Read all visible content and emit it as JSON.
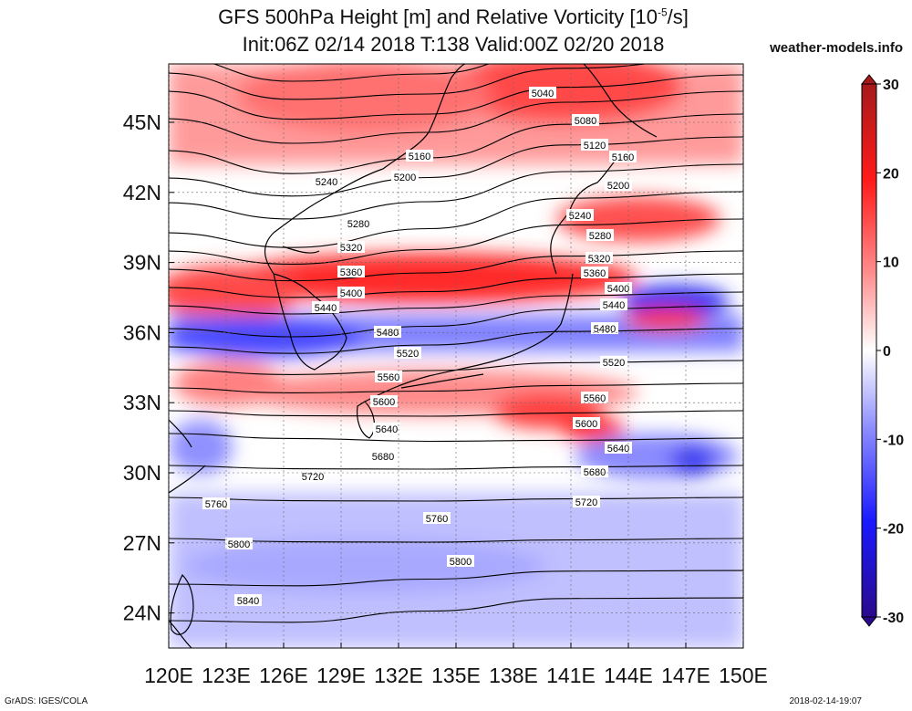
{
  "header": {
    "title_line1": "GFS 500hPa Height [m] and Relative Vorticity [10",
    "title_line1_exp": "-5",
    "title_line1_end": "/s]",
    "title_line2": "Init:06Z 02/14 2018 T:138 Valid:00Z 02/20 2018",
    "site": "weather-models.info"
  },
  "map": {
    "lon_ticks": [
      "120E",
      "123E",
      "126E",
      "129E",
      "132E",
      "135E",
      "138E",
      "141E",
      "144E",
      "147E",
      "150E"
    ],
    "lat_ticks": [
      "45N",
      "42N",
      "39N",
      "36N",
      "33N",
      "30N",
      "27N",
      "24N"
    ],
    "lon_range": [
      120,
      150
    ],
    "lat_range": [
      22.5,
      47.5
    ],
    "contour_labels": [
      "5040",
      "5080",
      "5120",
      "5160",
      "5160",
      "5200",
      "5200",
      "5240",
      "5240",
      "5280",
      "5280",
      "5320",
      "5320",
      "5360",
      "5360",
      "5400",
      "5400",
      "5440",
      "5440",
      "5480",
      "5480",
      "5520",
      "5520",
      "5560",
      "5560",
      "5600",
      "5600",
      "5640",
      "5640",
      "5680",
      "5680",
      "5720",
      "5720",
      "5760",
      "5760",
      "5800",
      "5800",
      "5840"
    ]
  },
  "colorbar": {
    "ticks": [
      "30",
      "20",
      "10",
      "0",
      "-10",
      "-20",
      "-30"
    ],
    "colors": {
      "max": "#b01c1c",
      "pos": "#ff2020",
      "zero": "#ffffff",
      "neg": "#2020ff",
      "min": "#2a0a8c"
    }
  },
  "footer": {
    "left": "GrADS: IGES/COLA",
    "right": "2018-02-14-19:07"
  }
}
